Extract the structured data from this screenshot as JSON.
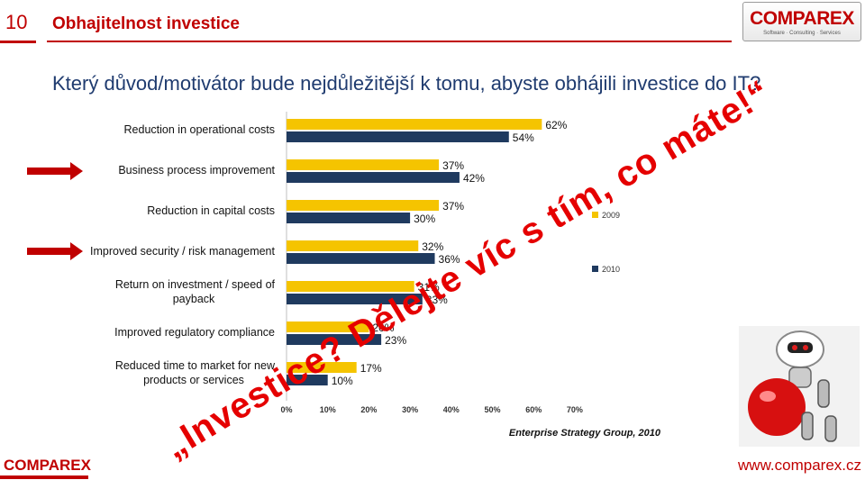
{
  "header": {
    "slide_number": "10",
    "title": "Obhajitelnost investice",
    "logo_text": "COMPAREX",
    "logo_subtitle": "Software · Consulting · Services"
  },
  "question": "Který důvod/motivátor bude nejdůležitější k tomu, abyste obhájili investice do IT?",
  "overlay_text": "„Investice? Dělejte víc s tím, co máte!“",
  "footer": {
    "brand": "COMPAREX",
    "url": "www.comparex.cz"
  },
  "colors": {
    "accent": "#c00000",
    "series_2009": "#f5c400",
    "series_2010": "#1f3a5f"
  },
  "chart_data": {
    "type": "bar",
    "orientation": "horizontal",
    "categories": [
      "Reduction in operational costs",
      "Business process improvement",
      "Reduction in capital costs",
      "Improved security / risk management",
      "Return on investment / speed of payback",
      "Improved regulatory compliance",
      "Reduced time to market for new products or services"
    ],
    "category_lines": [
      [
        "Reduction in operational costs"
      ],
      [
        "Business process improvement"
      ],
      [
        "Reduction in capital costs"
      ],
      [
        "Improved security / risk management"
      ],
      [
        "Return on investment / speed of",
        "payback"
      ],
      [
        "Improved regulatory compliance"
      ],
      [
        "Reduced time to market for new",
        "products or services"
      ]
    ],
    "series": [
      {
        "name": "2009",
        "values": [
          62,
          37,
          37,
          32,
          31,
          20,
          17
        ]
      },
      {
        "name": "2010",
        "values": [
          54,
          42,
          30,
          36,
          33,
          23,
          10
        ]
      }
    ],
    "xlim": [
      0,
      70
    ],
    "x_ticks": [
      "0%",
      "10%",
      "20%",
      "30%",
      "40%",
      "50%",
      "60%",
      "70%"
    ],
    "value_suffix": "%",
    "legend_position": "right",
    "source": "Enterprise Strategy Group, 2010",
    "highlighted_categories": [
      1,
      3
    ]
  }
}
